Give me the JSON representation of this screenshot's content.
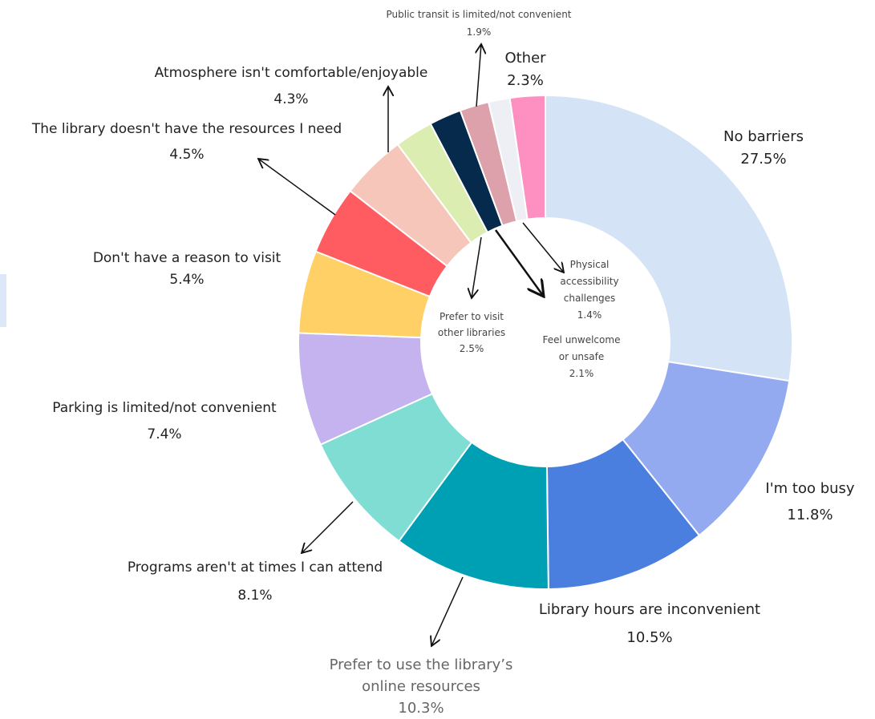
{
  "chart_data": {
    "type": "donut",
    "categories": [
      "No barriers",
      "I'm too busy",
      "Library hours are inconvenient",
      "Prefer to use the library’s online resources",
      "Programs aren't at times I can attend",
      "Parking is limited/not convenient",
      "Don't have a reason to visit",
      "The library doesn't have the resources I need",
      "Atmosphere isn't comfortable/enjoyable",
      "Prefer to visit other libraries",
      "Feel unwelcome or unsafe",
      "Public transit is limited/not convenient",
      "Physical accessibility challenges",
      "Other"
    ],
    "values": [
      27.5,
      11.8,
      10.5,
      10.3,
      8.1,
      7.4,
      5.4,
      4.5,
      4.3,
      2.5,
      2.1,
      1.9,
      1.4,
      2.3
    ],
    "value_labels": [
      "27.5%",
      "11.8%",
      "10.5%",
      "10.3%",
      "8.1%",
      "7.4%",
      "5.4%",
      "4.5%",
      "4.3%",
      "2.5%",
      "2.1%",
      "1.9%",
      "1.4%",
      "2.3%"
    ],
    "colors": [
      "#d4e3f5",
      "#94aaf0",
      "#4a7fe0",
      "#00a0b4",
      "#80ddd3",
      "#c4b3ef",
      "#fed066",
      "#ff5c62",
      "#f7c6bb",
      "#dbedb0",
      "#062a4c",
      "#dca1aa",
      "#eeeef5",
      "#fe8fc1"
    ]
  }
}
